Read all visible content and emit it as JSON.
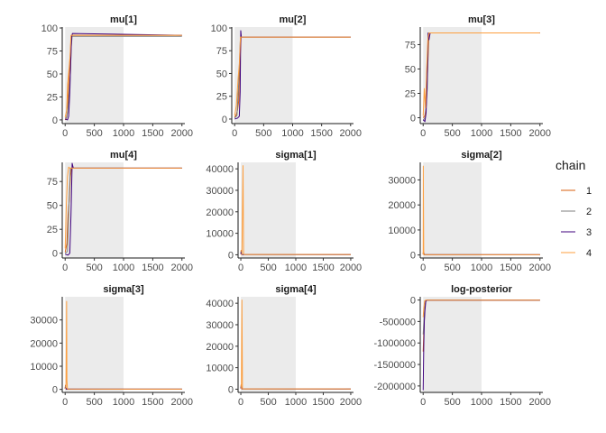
{
  "chart_data": {
    "type": "line",
    "layout": "facet-3x3",
    "warmup_shading": [
      0,
      1000
    ],
    "legend": {
      "title": "chain",
      "placement": "right",
      "entries": [
        {
          "label": "1",
          "color": "#d95f0e"
        },
        {
          "label": "2",
          "color": "#7f7f7f"
        },
        {
          "label": "3",
          "color": "#3f007d"
        },
        {
          "label": "4",
          "color": "#fd9f3f"
        }
      ]
    },
    "panels": [
      {
        "title": "mu[1]",
        "xlim": [
          -50,
          2050
        ],
        "ylim": [
          -4,
          101
        ],
        "xticks": [
          0,
          500,
          1000,
          1500,
          2000
        ],
        "yticks": [
          0,
          25,
          50,
          75,
          100
        ],
        "ytick_labels": [
          "0",
          "25",
          "50",
          "75",
          "100"
        ],
        "series": [
          {
            "chain": "1",
            "x": [
              0,
              20,
              40,
              55,
              70,
              80,
              90,
              100,
              110,
              2000
            ],
            "y": [
              0,
              2,
              8,
              35,
              52,
              62,
              75,
              88,
              92,
              92
            ]
          },
          {
            "chain": "2",
            "x": [
              0,
              30,
              60,
              90,
              105,
              120,
              2000
            ],
            "y": [
              2,
              3,
              20,
              50,
              80,
              91,
              91
            ]
          },
          {
            "chain": "3",
            "x": [
              0,
              40,
              60,
              80,
              95,
              110,
              125,
              2000
            ],
            "y": [
              1,
              0,
              4,
              30,
              62,
              90,
              94,
              92
            ]
          },
          {
            "chain": "4",
            "x": [
              0,
              25,
              45,
              65,
              85,
              100,
              2000
            ],
            "y": [
              3,
              10,
              40,
              55,
              70,
              92,
              92
            ]
          }
        ]
      },
      {
        "title": "mu[2]",
        "xlim": [
          -50,
          2050
        ],
        "ylim": [
          -5,
          101
        ],
        "xticks": [
          0,
          500,
          1000,
          1500,
          2000
        ],
        "yticks": [
          0,
          25,
          50,
          75,
          100
        ],
        "ytick_labels": [
          "0",
          "25",
          "50",
          "75",
          "100"
        ],
        "series": [
          {
            "chain": "1",
            "x": [
              0,
              30,
              50,
              70,
              90,
              110,
              2000
            ],
            "y": [
              2,
              5,
              10,
              20,
              60,
              90,
              90
            ]
          },
          {
            "chain": "2",
            "x": [
              0,
              40,
              70,
              100,
              2000
            ],
            "y": [
              1,
              4,
              40,
              90,
              90
            ]
          },
          {
            "chain": "3",
            "x": [
              0,
              50,
              80,
              95,
              105,
              115,
              2000
            ],
            "y": [
              0,
              1,
              3,
              30,
              97,
              90,
              90
            ]
          },
          {
            "chain": "4",
            "x": [
              0,
              30,
              60,
              80,
              100,
              2000
            ],
            "y": [
              4,
              15,
              45,
              60,
              90,
              90
            ]
          }
        ]
      },
      {
        "title": "mu[3]",
        "xlim": [
          -50,
          2050
        ],
        "ylim": [
          -6,
          93
        ],
        "xticks": [
          0,
          500,
          1000,
          1500,
          2000
        ],
        "yticks": [
          0,
          25,
          50,
          75
        ],
        "ytick_labels": [
          "0",
          "25",
          "50",
          "75"
        ],
        "series": [
          {
            "chain": "1",
            "x": [
              0,
              30,
              50,
              70,
              90,
              100,
              2000
            ],
            "y": [
              0,
              2,
              10,
              40,
              70,
              87,
              87
            ]
          },
          {
            "chain": "2",
            "x": [
              0,
              40,
              70,
              90,
              2000
            ],
            "y": [
              -3,
              1,
              30,
              87,
              87
            ]
          },
          {
            "chain": "3",
            "x": [
              0,
              30,
              50,
              70,
              85,
              100,
              120,
              2000
            ],
            "y": [
              -2,
              -4,
              5,
              40,
              87,
              80,
              87,
              87
            ]
          },
          {
            "chain": "4",
            "x": [
              0,
              20,
              40,
              60,
              80,
              100,
              2000
            ],
            "y": [
              2,
              30,
              10,
              50,
              80,
              87,
              87
            ]
          }
        ]
      },
      {
        "title": "mu[4]",
        "xlim": [
          -50,
          2050
        ],
        "ylim": [
          -5,
          95
        ],
        "xticks": [
          0,
          500,
          1000,
          1500,
          2000
        ],
        "yticks": [
          0,
          25,
          50,
          75
        ],
        "ytick_labels": [
          "0",
          "25",
          "50",
          "75"
        ],
        "series": [
          {
            "chain": "1",
            "x": [
              0,
              30,
              50,
              70,
              90,
              110,
              2000
            ],
            "y": [
              1,
              10,
              40,
              55,
              80,
              89,
              89
            ]
          },
          {
            "chain": "2",
            "x": [
              0,
              40,
              70,
              90,
              2000
            ],
            "y": [
              0,
              2,
              60,
              89,
              89
            ]
          },
          {
            "chain": "3",
            "x": [
              0,
              50,
              80,
              100,
              120,
              140,
              2000
            ],
            "y": [
              -1,
              -2,
              0,
              40,
              94,
              89,
              89
            ]
          },
          {
            "chain": "4",
            "x": [
              0,
              20,
              40,
              60,
              80,
              2000
            ],
            "y": [
              5,
              50,
              80,
              90,
              89,
              89
            ]
          }
        ]
      },
      {
        "title": "sigma[1]",
        "xlim": [
          -50,
          2050
        ],
        "ylim": [
          -1500,
          43000
        ],
        "xticks": [
          0,
          500,
          1000,
          1500,
          2000
        ],
        "yticks": [
          0,
          10000,
          20000,
          30000,
          40000
        ],
        "ytick_labels": [
          "0",
          "10000",
          "20000",
          "30000",
          "40000"
        ],
        "series": [
          {
            "chain": "1",
            "x": [
              0,
              5,
              20,
              2000
            ],
            "y": [
              500,
              2000,
              120,
              100
            ]
          },
          {
            "chain": "2",
            "x": [
              0,
              5,
              20,
              2000
            ],
            "y": [
              400,
              1500,
              110,
              100
            ]
          },
          {
            "chain": "3",
            "x": [
              0,
              5,
              20,
              2000
            ],
            "y": [
              300,
              1000,
              105,
              100
            ]
          },
          {
            "chain": "4",
            "x": [
              0,
              20,
              40,
              50,
              60,
              2000
            ],
            "y": [
              100,
              200,
              41500,
              300,
              150,
              100
            ]
          }
        ]
      },
      {
        "title": "sigma[2]",
        "xlim": [
          -50,
          2050
        ],
        "ylim": [
          -1200,
          37000
        ],
        "xticks": [
          0,
          500,
          1000,
          1500,
          2000
        ],
        "yticks": [
          0,
          10000,
          20000,
          30000
        ],
        "ytick_labels": [
          "0",
          "10000",
          "20000",
          "30000"
        ],
        "series": [
          {
            "chain": "1",
            "x": [
              0,
              5,
              20,
              2000
            ],
            "y": [
              500,
              1500,
              120,
              100
            ]
          },
          {
            "chain": "2",
            "x": [
              0,
              5,
              20,
              2000
            ],
            "y": [
              400,
              1200,
              110,
              100
            ]
          },
          {
            "chain": "3",
            "x": [
              0,
              5,
              20,
              2000
            ],
            "y": [
              300,
              800,
              105,
              100
            ]
          },
          {
            "chain": "4",
            "x": [
              0,
              2,
              10,
              20,
              2000
            ],
            "y": [
              100,
              35500,
              200,
              120,
              100
            ]
          }
        ]
      },
      {
        "title": "sigma[3]",
        "xlim": [
          -50,
          2050
        ],
        "ylim": [
          -1300,
          40000
        ],
        "xticks": [
          0,
          500,
          1000,
          1500,
          2000
        ],
        "yticks": [
          0,
          10000,
          20000,
          30000
        ],
        "ytick_labels": [
          "0",
          "10000",
          "20000",
          "30000"
        ],
        "series": [
          {
            "chain": "1",
            "x": [
              0,
              5,
              20,
              2000
            ],
            "y": [
              500,
              1800,
              120,
              100
            ]
          },
          {
            "chain": "2",
            "x": [
              0,
              5,
              20,
              2000
            ],
            "y": [
              400,
              1300,
              110,
              100
            ]
          },
          {
            "chain": "3",
            "x": [
              0,
              5,
              20,
              2000
            ],
            "y": [
              300,
              900,
              105,
              100
            ]
          },
          {
            "chain": "4",
            "x": [
              0,
              15,
              25,
              30,
              40,
              2000
            ],
            "y": [
              200,
              1000,
              38000,
              4000,
              150,
              100
            ]
          }
        ]
      },
      {
        "title": "sigma[4]",
        "xlim": [
          -50,
          2050
        ],
        "ylim": [
          -1500,
          43000
        ],
        "xticks": [
          0,
          500,
          1000,
          1500,
          2000
        ],
        "yticks": [
          0,
          10000,
          20000,
          30000,
          40000
        ],
        "ytick_labels": [
          "0",
          "10000",
          "20000",
          "30000",
          "40000"
        ],
        "series": [
          {
            "chain": "1",
            "x": [
              0,
              5,
              20,
              2000
            ],
            "y": [
              500,
              2000,
              120,
              100
            ]
          },
          {
            "chain": "2",
            "x": [
              0,
              5,
              20,
              2000
            ],
            "y": [
              400,
              1500,
              110,
              100
            ]
          },
          {
            "chain": "3",
            "x": [
              0,
              5,
              20,
              2000
            ],
            "y": [
              300,
              1000,
              105,
              100
            ]
          },
          {
            "chain": "4",
            "x": [
              0,
              10,
              20,
              30,
              2000
            ],
            "y": [
              100,
              200,
              41500,
              150,
              100
            ]
          }
        ]
      },
      {
        "title": "log-posterior",
        "xlim": [
          -50,
          2050
        ],
        "ylim": [
          -2150000,
          75000
        ],
        "xticks": [
          0,
          500,
          1000,
          1500,
          2000
        ],
        "yticks": [
          0,
          -500000,
          -1000000,
          -1500000,
          -2000000
        ],
        "ytick_labels": [
          "0",
          "-500000",
          "-1000000",
          "-1500000",
          "-2000000"
        ],
        "series": [
          {
            "chain": "1",
            "x": [
              0,
              15,
              30,
              45,
              60,
              2000
            ],
            "y": [
              -1200000,
              -600000,
              -150000,
              -20000,
              -5000,
              -5000
            ]
          },
          {
            "chain": "2",
            "x": [
              0,
              20,
              40,
              60,
              2000
            ],
            "y": [
              -800000,
              -300000,
              -50000,
              -5000,
              -5000
            ]
          },
          {
            "chain": "3",
            "x": [
              0,
              5,
              10,
              20,
              30,
              45,
              60,
              2000
            ],
            "y": [
              -2100000,
              -1600000,
              -1100000,
              -500000,
              -250000,
              -30000,
              -5000,
              -5000
            ]
          },
          {
            "chain": "4",
            "x": [
              0,
              10,
              25,
              40,
              2000
            ],
            "y": [
              -400000,
              -200000,
              -20000,
              -5000,
              -5000
            ]
          }
        ]
      }
    ]
  }
}
